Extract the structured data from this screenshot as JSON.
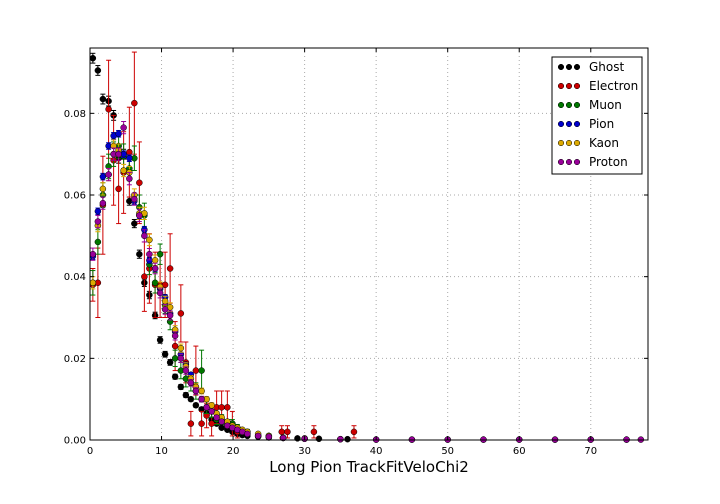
{
  "chart_data": {
    "type": "scatter",
    "title": "",
    "xlabel": "Long Pion TrackFitVeloChi2",
    "ylabel": "",
    "xlim": [
      0,
      78
    ],
    "ylim": [
      0,
      0.096
    ],
    "xticks": [
      0,
      10,
      20,
      30,
      40,
      50,
      60,
      70
    ],
    "xtick_labels": [
      "0",
      "10",
      "20",
      "30",
      "40",
      "50",
      "60",
      "70"
    ],
    "yticks": [
      0.0,
      0.02,
      0.04,
      0.06,
      0.08
    ],
    "ytick_labels": [
      "0.00",
      "0.02",
      "0.04",
      "0.06",
      "0.08"
    ],
    "grid": true,
    "legend_position": "top-right",
    "series": [
      {
        "name": "Ghost",
        "color": "#000000",
        "x": [
          0.4,
          1.1,
          1.8,
          2.6,
          3.3,
          4.0,
          4.7,
          5.5,
          6.2,
          6.9,
          7.6,
          8.3,
          9.1,
          9.8,
          10.5,
          11.2,
          11.9,
          12.7,
          13.4,
          14.1,
          14.8,
          15.6,
          16.3,
          17.0,
          17.7,
          18.4,
          19.2,
          19.9,
          20.6,
          21.3,
          22.0,
          23.5,
          25.0,
          27.0,
          29.0,
          32.0,
          36.0
        ],
        "y": [
          0.0935,
          0.0905,
          0.0835,
          0.083,
          0.0795,
          0.069,
          0.07,
          0.0585,
          0.053,
          0.0455,
          0.0385,
          0.0355,
          0.0305,
          0.0245,
          0.021,
          0.019,
          0.0155,
          0.013,
          0.011,
          0.01,
          0.0085,
          0.0075,
          0.0065,
          0.005,
          0.004,
          0.003,
          0.0025,
          0.002,
          0.0015,
          0.0012,
          0.001,
          0.0008,
          0.0006,
          0.0005,
          0.0004,
          0.0003,
          0.0002
        ],
        "err": [
          0.0012,
          0.0012,
          0.0012,
          0.0012,
          0.0012,
          0.0012,
          0.0012,
          0.001,
          0.001,
          0.001,
          0.0009,
          0.0009,
          0.0008,
          0.0008,
          0.0007,
          0.0007,
          0.0006,
          0.0006,
          0.0006,
          0.0005,
          0.0005,
          0.0005,
          0.0004,
          0.0004,
          0.0003,
          0.0003,
          0.0003,
          0.0003,
          0.0002,
          0.0002,
          0.0002,
          0.0002,
          0.0001,
          0.0001,
          0.0001,
          0.0001,
          0.0001
        ]
      },
      {
        "name": "Electron",
        "color": "#cc0000",
        "x": [
          0.4,
          1.1,
          1.8,
          2.6,
          3.3,
          4.0,
          4.7,
          5.5,
          6.2,
          6.9,
          7.6,
          8.3,
          9.1,
          9.8,
          10.5,
          11.2,
          11.9,
          12.7,
          13.4,
          14.1,
          14.8,
          15.6,
          16.3,
          17.0,
          17.7,
          18.4,
          19.2,
          19.9,
          20.6,
          26.8,
          27.6,
          31.3,
          36.9
        ],
        "y": [
          0.038,
          0.0385,
          0.0575,
          0.081,
          0.0685,
          0.0615,
          0.0655,
          0.0705,
          0.0825,
          0.063,
          0.04,
          0.042,
          0.038,
          0.038,
          0.038,
          0.042,
          0.023,
          0.031,
          0.019,
          0.004,
          0.017,
          0.004,
          0.006,
          0.004,
          0.008,
          0.008,
          0.008,
          0.004,
          0.002,
          0.002,
          0.002,
          0.002,
          0.002
        ],
        "err": [
          0.004,
          0.0085,
          0.012,
          0.012,
          0.011,
          0.0085,
          0.01,
          0.011,
          0.0125,
          0.01,
          0.0085,
          0.0085,
          0.008,
          0.008,
          0.008,
          0.0085,
          0.006,
          0.007,
          0.005,
          0.003,
          0.006,
          0.003,
          0.003,
          0.003,
          0.004,
          0.004,
          0.004,
          0.003,
          0.0015,
          0.0015,
          0.0015,
          0.0015,
          0.0015
        ]
      },
      {
        "name": "Muon",
        "color": "#007700",
        "x": [
          0.4,
          1.1,
          1.8,
          2.6,
          3.3,
          4.0,
          4.7,
          5.5,
          6.2,
          6.9,
          7.6,
          8.3,
          9.1,
          9.8,
          10.5,
          11.2,
          11.9,
          12.7,
          13.4,
          14.1,
          14.8,
          15.6,
          16.3,
          17.0,
          17.7,
          18.4,
          19.2,
          19.9,
          20.6,
          21.3,
          22.0,
          23.5,
          25.0
        ],
        "y": [
          0.0385,
          0.0485,
          0.06,
          0.067,
          0.07,
          0.072,
          0.0695,
          0.0665,
          0.069,
          0.057,
          0.055,
          0.043,
          0.0385,
          0.0455,
          0.033,
          0.029,
          0.02,
          0.017,
          0.015,
          0.014,
          0.012,
          0.017,
          0.008,
          0.007,
          0.005,
          0.005,
          0.004,
          0.004,
          0.003,
          0.002,
          0.002,
          0.001,
          0.001
        ],
        "err": [
          0.003,
          0.003,
          0.003,
          0.003,
          0.003,
          0.003,
          0.003,
          0.003,
          0.003,
          0.003,
          0.003,
          0.0025,
          0.0025,
          0.0025,
          0.002,
          0.002,
          0.002,
          0.002,
          0.002,
          0.002,
          0.002,
          0.005,
          0.0015,
          0.0015,
          0.0012,
          0.0012,
          0.001,
          0.001,
          0.0008,
          0.0006,
          0.0006,
          0.0005,
          0.0005
        ]
      },
      {
        "name": "Pion",
        "color": "#0000cc",
        "x": [
          0.4,
          1.1,
          1.8,
          2.6,
          3.3,
          4.0,
          4.7,
          5.5,
          6.2,
          6.9,
          7.6,
          8.3,
          9.1,
          9.8,
          10.5,
          11.2,
          11.9,
          12.7,
          13.4,
          14.1,
          14.8,
          15.6,
          16.3,
          17.0,
          17.7,
          18.4,
          19.2,
          19.9,
          20.6,
          21.3,
          22.0,
          23.5,
          25.0,
          27.0,
          30.0,
          35.0,
          40.0,
          45.0,
          50.0,
          55.0,
          60.0,
          65.0,
          70.0,
          75.0
        ],
        "y": [
          0.045,
          0.056,
          0.0645,
          0.072,
          0.0745,
          0.075,
          0.07,
          0.069,
          0.0585,
          0.055,
          0.0515,
          0.044,
          0.042,
          0.037,
          0.035,
          0.031,
          0.0265,
          0.021,
          0.0185,
          0.016,
          0.013,
          0.01,
          0.008,
          0.007,
          0.0055,
          0.0045,
          0.0035,
          0.003,
          0.0025,
          0.002,
          0.0015,
          0.001,
          0.0008,
          0.0005,
          0.0003,
          0.0002,
          0.0001,
          0.0001,
          0.0001,
          0.0001,
          0.0001,
          0.0001,
          0.0001,
          0.0001
        ],
        "err": [
          0.0008,
          0.0008,
          0.0008,
          0.0008,
          0.0008,
          0.0008,
          0.0008,
          0.0008,
          0.0008,
          0.0008,
          0.0008,
          0.0007,
          0.0007,
          0.0007,
          0.0006,
          0.0006,
          0.0006,
          0.0005,
          0.0005,
          0.0005,
          0.0004,
          0.0004,
          0.0004,
          0.0003,
          0.0003,
          0.0003,
          0.0002,
          0.0002,
          0.0002,
          0.0002,
          0.0002,
          0.0001,
          0.0001,
          0.0001,
          0.0001,
          0.0001,
          0.0001,
          0.0001,
          0.0001,
          0.0001,
          0.0001,
          0.0001,
          0.0001,
          0.0001
        ]
      },
      {
        "name": "Kaon",
        "color": "#ddaa00",
        "x": [
          0.4,
          1.1,
          1.8,
          2.6,
          3.3,
          4.0,
          4.7,
          5.5,
          6.2,
          6.9,
          7.6,
          8.3,
          9.1,
          9.8,
          10.5,
          11.2,
          11.9,
          12.7,
          13.4,
          14.1,
          14.8,
          15.6,
          16.3,
          17.0,
          17.7,
          18.4,
          19.2,
          19.9,
          20.6,
          21.3,
          22.0,
          23.5,
          25.0,
          27.0,
          30.0,
          35.0
        ],
        "y": [
          0.0385,
          0.0525,
          0.0615,
          0.065,
          0.072,
          0.071,
          0.066,
          0.0655,
          0.06,
          0.0555,
          0.0555,
          0.049,
          0.044,
          0.0375,
          0.034,
          0.0325,
          0.027,
          0.0225,
          0.018,
          0.015,
          0.013,
          0.012,
          0.01,
          0.0085,
          0.0065,
          0.0055,
          0.0045,
          0.0035,
          0.003,
          0.0025,
          0.002,
          0.0015,
          0.001,
          0.0006,
          0.0004,
          0.0002
        ],
        "err": [
          0.0015,
          0.0015,
          0.0015,
          0.0015,
          0.0015,
          0.0015,
          0.0015,
          0.0015,
          0.0015,
          0.0015,
          0.0015,
          0.0014,
          0.0013,
          0.0012,
          0.0012,
          0.0011,
          0.001,
          0.001,
          0.0009,
          0.0008,
          0.0008,
          0.0007,
          0.0006,
          0.0006,
          0.0005,
          0.0005,
          0.0004,
          0.0004,
          0.0003,
          0.0003,
          0.0003,
          0.0002,
          0.0002,
          0.0002,
          0.0001,
          0.0001
        ]
      },
      {
        "name": "Proton",
        "color": "#990099",
        "x": [
          0.4,
          1.1,
          1.8,
          2.6,
          3.3,
          4.0,
          4.7,
          5.5,
          6.2,
          6.9,
          7.6,
          8.3,
          9.1,
          9.8,
          10.5,
          11.2,
          11.9,
          12.7,
          13.4,
          14.1,
          14.8,
          15.6,
          16.3,
          17.0,
          17.7,
          18.4,
          19.2,
          19.9,
          20.6,
          21.3,
          22.0,
          23.5,
          25.0,
          27.0,
          30.0,
          35.0,
          40.0,
          45.0,
          50.0,
          55.0,
          60.0,
          65.0,
          70.0,
          75.0,
          77.0
        ],
        "y": [
          0.0455,
          0.0535,
          0.058,
          0.065,
          0.07,
          0.07,
          0.0765,
          0.064,
          0.059,
          0.055,
          0.05,
          0.0455,
          0.042,
          0.036,
          0.032,
          0.0305,
          0.0255,
          0.02,
          0.017,
          0.014,
          0.012,
          0.01,
          0.008,
          0.007,
          0.0055,
          0.0045,
          0.0035,
          0.003,
          0.0025,
          0.002,
          0.0015,
          0.001,
          0.0008,
          0.0005,
          0.0003,
          0.0002,
          0.0001,
          0.0001,
          0.0001,
          0.0001,
          0.0001,
          0.0001,
          0.0001,
          0.0001,
          0.0001
        ],
        "err": [
          0.0015,
          0.0015,
          0.0015,
          0.0015,
          0.0015,
          0.0015,
          0.0015,
          0.0015,
          0.0015,
          0.0015,
          0.0015,
          0.0014,
          0.0013,
          0.0012,
          0.0012,
          0.0011,
          0.001,
          0.001,
          0.0009,
          0.0008,
          0.0008,
          0.0007,
          0.0006,
          0.0006,
          0.0005,
          0.0005,
          0.0004,
          0.0004,
          0.0003,
          0.0003,
          0.0003,
          0.0002,
          0.0002,
          0.0002,
          0.0001,
          0.0001,
          0.0001,
          0.0001,
          0.0001,
          0.0001,
          0.0001,
          0.0001,
          0.0001,
          0.0001,
          0.0001
        ]
      }
    ]
  }
}
